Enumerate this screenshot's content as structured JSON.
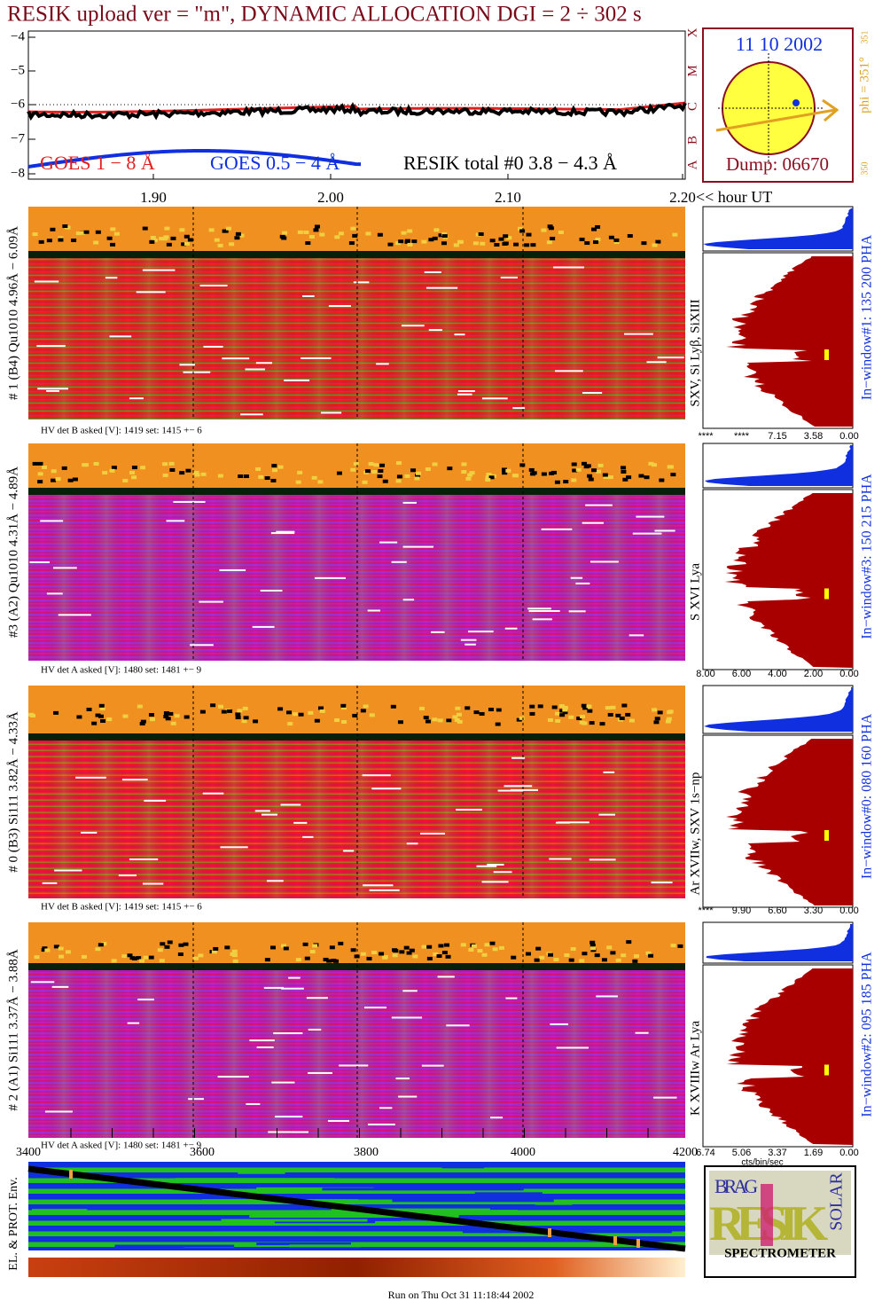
{
  "header": {
    "title": "RESIK upload ver = \"m\", DYNAMIC ALLOCATION  DGI =   2 ÷ 302 s"
  },
  "goes_panel": {
    "yticks": [
      "−4",
      "−5",
      "−6",
      "−7",
      "−8"
    ],
    "class_letters": [
      "X",
      "M",
      "C",
      "B",
      "A"
    ],
    "legend": [
      "GOES 1 − 8 Å",
      "GOES 0.5 − 4 Å",
      "RESIK total #0  3.8 − 4.3 Å"
    ],
    "xticks": [
      "1.90",
      "2.00",
      "2.10",
      "2.20"
    ],
    "x_unit": "<< hour UT"
  },
  "sun_box": {
    "date": "11 10 2002",
    "dump": "Dump: 06670",
    "phi": "phi = 351°",
    "phi_small": "351",
    "phi_min": "350"
  },
  "detectors": [
    {
      "label": "# 1 (B4) Qu1010 4.96Å − 6.09Å",
      "lines": "SXV, Si Lyβ, SiXIII",
      "hv": "HV det B asked [V]:  1419 set:  1415 +−    6",
      "window": "In−window#1:  135 200 PHA",
      "hist_ticks": [
        "****",
        "****",
        "7.15",
        "3.58",
        "0.00"
      ]
    },
    {
      "label": "#3 (A2) Qu1010  4.31Å − 4.89Å",
      "lines": "S XVI Lya",
      "hv": "HV det A asked [V]:  1480 set:  1481 +−    9",
      "window": "In−window#3:  150 215 PHA",
      "hist_ticks": [
        "8.00",
        "6.00",
        "4.00",
        "2.00",
        "0.00"
      ]
    },
    {
      "label": "# 0 (B3) Si111  3.82Å − 4.33Å",
      "lines": "Ar XVIIw,  SXV 1s−np",
      "hv": "HV det B asked [V]:  1419 set:  1415 +−    6",
      "window": "In−window#0:  080 160 PHA",
      "hist_ticks": [
        "****",
        "9.90",
        "6.60",
        "3.30",
        "0.00"
      ]
    },
    {
      "label": "# 2 (A1) Si111  3.37Å − 3.88Å",
      "lines": "K XVIIIw  Ar Lya",
      "hv": "HV det A asked [V]:  1480 set:  1481 +−    9",
      "window": "In−window#2:  095 185 PHA",
      "hist_ticks": [
        "6.74",
        "5.06",
        "3.37",
        "1.69",
        "0.00"
      ]
    }
  ],
  "hist_unit": "cts/bin/sec",
  "env_panel": {
    "label": "EL. & PROT. Env.",
    "xticks": [
      "3400",
      "3600",
      "3800",
      "4000",
      "4200"
    ]
  },
  "logo": {
    "lines": [
      "BRAG",
      "RESIK",
      "SOLAR",
      "SPECTROMETER"
    ]
  },
  "footer": "Run on Thu Oct 31 11:18:44 2002"
}
